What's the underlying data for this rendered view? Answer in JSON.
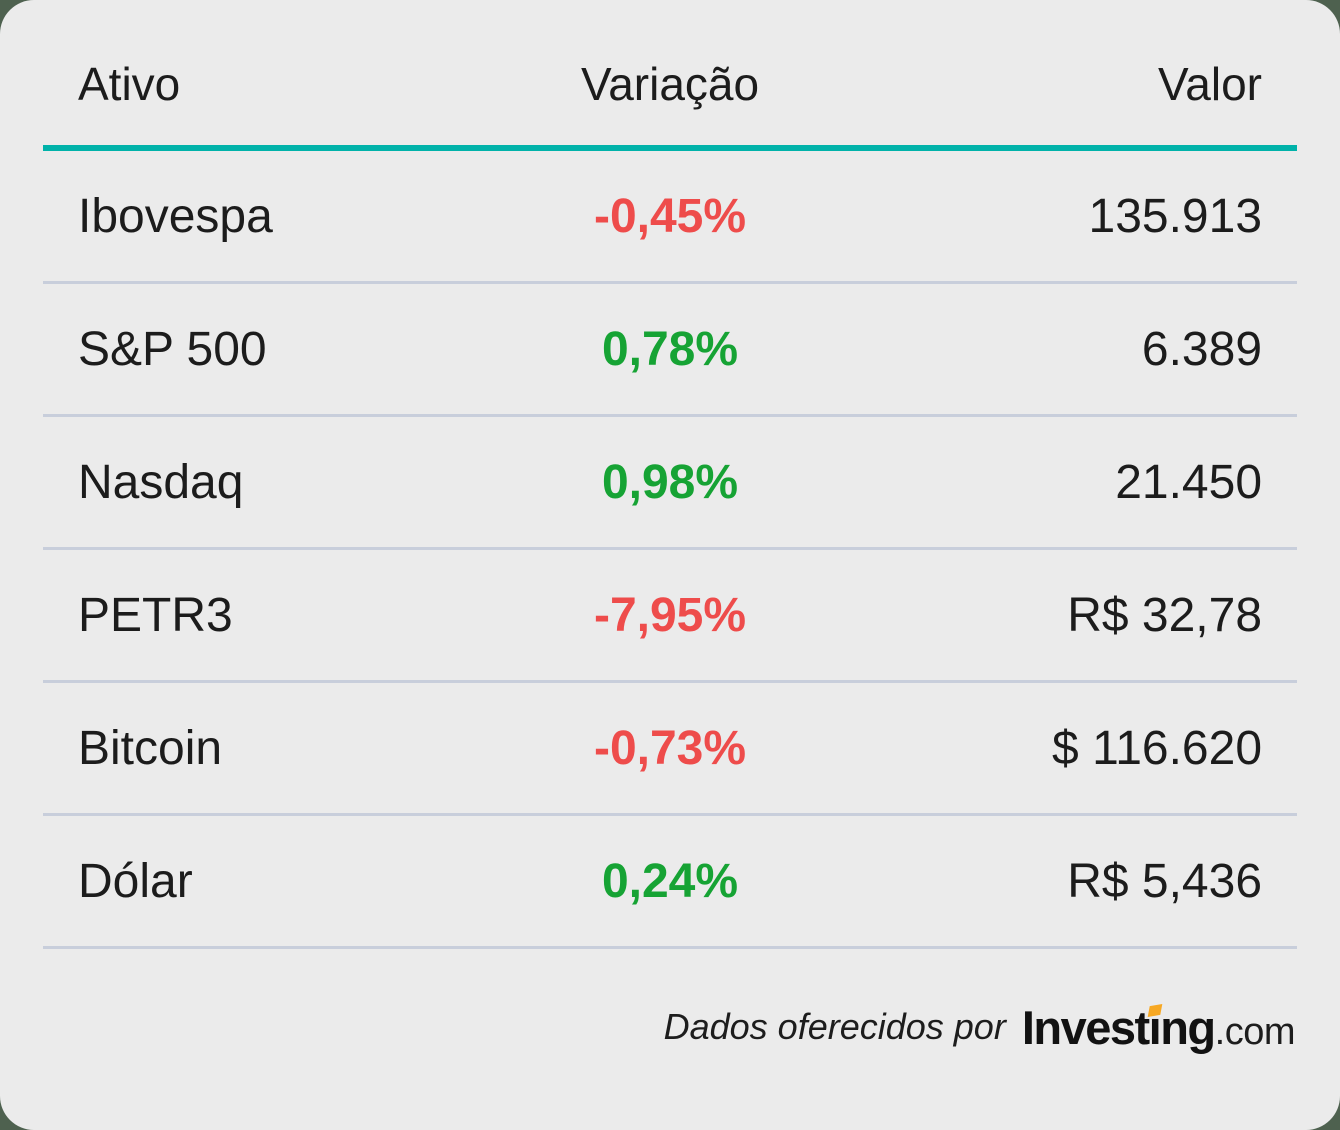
{
  "card": {
    "header": {
      "asset": "Ativo",
      "variation": "Variação",
      "value": "Valor"
    },
    "rows": [
      {
        "asset": "Ibovespa",
        "change": "-0,45%",
        "trend": "down",
        "value": "135.913"
      },
      {
        "asset": "S&P 500",
        "change": "0,78%",
        "trend": "up",
        "value": "6.389"
      },
      {
        "asset": "Nasdaq",
        "change": "0,98%",
        "trend": "up",
        "value": "21.450"
      },
      {
        "asset": "PETR3",
        "change": "-7,95%",
        "trend": "down",
        "value": "R$ 32,78"
      },
      {
        "asset": "Bitcoin",
        "change": "-0,73%",
        "trend": "down",
        "value": "$ 116.620"
      },
      {
        "asset": "Dólar",
        "change": "0,24%",
        "trend": "up",
        "value": "R$ 5,436"
      }
    ],
    "footer": {
      "credit": "Dados oferecidos por",
      "logo": {
        "part1": "Invest",
        "dotless_i": "ı",
        "part2": "ng",
        "suffix": ".com"
      }
    }
  },
  "colors": {
    "negative": "#ee4c4b",
    "positive": "#16a334",
    "accent_teal": "#00b2a9",
    "divider": "#c8cedb",
    "card_background": "#ebebeb",
    "outer_background": "#4e614f",
    "logo_orange": "#f7a823"
  },
  "chart_data": {
    "type": "table",
    "title": "",
    "columns": [
      "Ativo",
      "Variação",
      "Valor"
    ],
    "rows": [
      {
        "ativo": "Ibovespa",
        "variacao_pct": -0.45,
        "valor_display": "135.913",
        "valor": 135913
      },
      {
        "ativo": "S&P 500",
        "variacao_pct": 0.78,
        "valor_display": "6.389",
        "valor": 6389
      },
      {
        "ativo": "Nasdaq",
        "variacao_pct": 0.98,
        "valor_display": "21.450",
        "valor": 21450
      },
      {
        "ativo": "PETR3",
        "variacao_pct": -7.95,
        "valor_display": "R$ 32,78",
        "valor": 32.78
      },
      {
        "ativo": "Bitcoin",
        "variacao_pct": -0.73,
        "valor_display": "$ 116.620",
        "valor": 116620
      },
      {
        "ativo": "Dólar",
        "variacao_pct": 0.24,
        "valor_display": "R$ 5,436",
        "valor": 5.436
      }
    ],
    "notes": "Negative variations shown in red, positive in green; attribution: Dados oferecidos por Investing.com"
  }
}
